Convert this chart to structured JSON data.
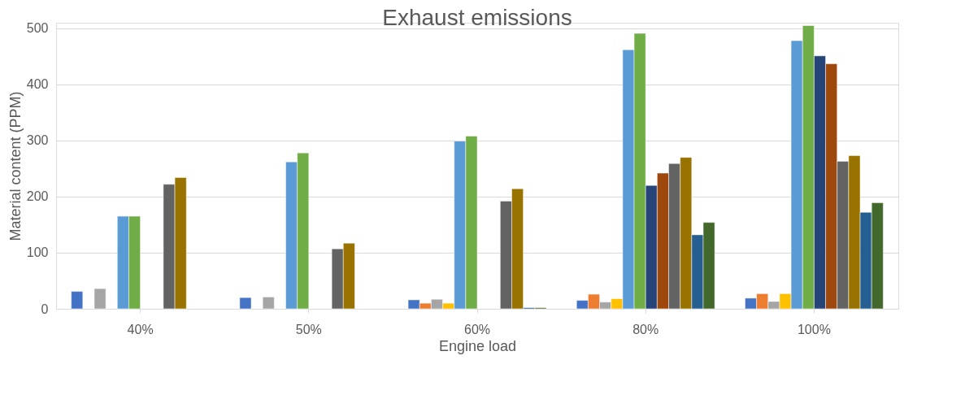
{
  "chart_data": {
    "type": "bar",
    "title": "Exhaust emissions",
    "xlabel": "Engine load",
    "ylabel": "Material content (PPM)",
    "categories": [
      "40%",
      "50%",
      "60%",
      "80%",
      "100%"
    ],
    "ylim": [
      0,
      510
    ],
    "yticks": [
      0,
      100,
      200,
      300,
      400,
      500
    ],
    "grid": "y",
    "legend": false,
    "series": [
      {
        "color": "#4472c4",
        "values": [
          31,
          20,
          16,
          15,
          19
        ]
      },
      {
        "color": "#ed7d31",
        "values": [
          null,
          null,
          10,
          26,
          27
        ]
      },
      {
        "color": "#a5a5a5",
        "values": [
          36,
          21,
          17,
          12,
          13
        ]
      },
      {
        "color": "#ffc000",
        "values": [
          null,
          null,
          10,
          18,
          27
        ]
      },
      {
        "color": "#5b9bd5",
        "values": [
          165,
          262,
          299,
          462,
          478
        ]
      },
      {
        "color": "#70ad47",
        "values": [
          165,
          278,
          308,
          491,
          505
        ]
      },
      {
        "color": "#264478",
        "values": [
          null,
          null,
          null,
          220,
          451
        ]
      },
      {
        "color": "#9e480e",
        "values": [
          null,
          null,
          null,
          242,
          437
        ]
      },
      {
        "color": "#636363",
        "values": [
          222,
          107,
          192,
          259,
          263
        ]
      },
      {
        "color": "#997300",
        "values": [
          234,
          117,
          214,
          270,
          273
        ]
      },
      {
        "color": "#255e91",
        "values": [
          null,
          null,
          2,
          132,
          172
        ]
      },
      {
        "color": "#43682b",
        "values": [
          null,
          null,
          2,
          154,
          189
        ]
      }
    ]
  }
}
